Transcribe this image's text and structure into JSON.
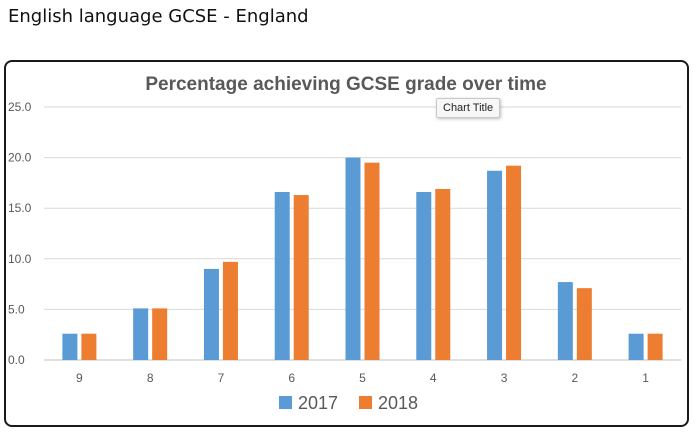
{
  "page": {
    "heading": "English language GCSE - England"
  },
  "tooltip": {
    "text": "Chart Title"
  },
  "chart_data": {
    "type": "bar",
    "title": "Percentage achieving GCSE grade over time",
    "categories": [
      "9",
      "8",
      "7",
      "6",
      "5",
      "4",
      "3",
      "2",
      "1"
    ],
    "series": [
      {
        "name": "2017",
        "color": "#5b9bd5",
        "values": [
          2.6,
          5.1,
          9.0,
          16.6,
          20.0,
          16.6,
          18.7,
          7.7,
          2.6
        ]
      },
      {
        "name": "2018",
        "color": "#ed7d31",
        "values": [
          2.6,
          5.1,
          9.7,
          16.3,
          19.5,
          16.9,
          19.2,
          7.1,
          2.6
        ]
      }
    ],
    "yticks": [
      "0.0",
      "5.0",
      "10.0",
      "15.0",
      "20.0",
      "25.0"
    ],
    "ylim": [
      0,
      25
    ],
    "grid": true,
    "legend": "bottom"
  }
}
